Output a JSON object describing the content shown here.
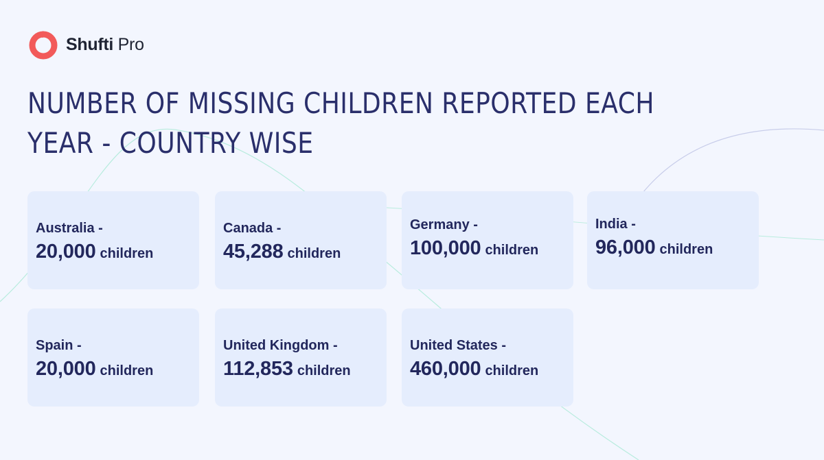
{
  "brand": {
    "name_bold": "Shufti",
    "name_light": "Pro",
    "accent_color": "#f25a5a"
  },
  "title": {
    "line1": "NUMBER OF MISSING CHILDREN REPORTED EACH",
    "line2": "YEAR - COUNTRY WISE"
  },
  "cards": [
    {
      "country": "Australia -",
      "value": "20,000",
      "unit": "children"
    },
    {
      "country": "Canada -",
      "value": "45,288",
      "unit": "children"
    },
    {
      "country": "Germany -",
      "value": "100,000",
      "unit": "children"
    },
    {
      "country": "India -",
      "value": "96,000",
      "unit": "children"
    },
    {
      "country": "Spain -",
      "value": "20,000",
      "unit": "children"
    },
    {
      "country": "United Kingdom -",
      "value": "112,853",
      "unit": "children"
    },
    {
      "country": "United States -",
      "value": "460,000",
      "unit": "children"
    }
  ],
  "colors": {
    "background": "#f3f6fe",
    "card": "#e5edfd",
    "text": "#22275c"
  }
}
